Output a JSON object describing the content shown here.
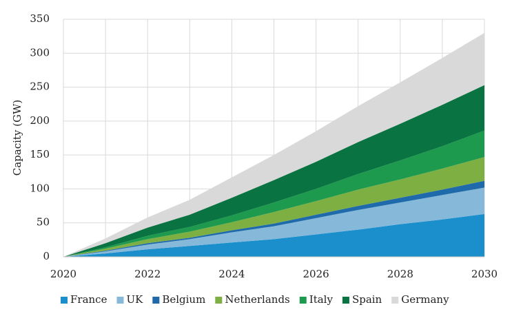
{
  "chart_data": {
    "type": "stacked_area",
    "y_label": "Capacity (GW)",
    "x": [
      2020,
      2021,
      2022,
      2023,
      2024,
      2025,
      2026,
      2027,
      2028,
      2029,
      2030
    ],
    "xlim": [
      2020,
      2030
    ],
    "xticks": [
      2020,
      2022,
      2024,
      2026,
      2028,
      2030
    ],
    "ylim": [
      0,
      350
    ],
    "yticks": [
      0,
      50,
      100,
      150,
      200,
      250,
      300,
      350
    ],
    "grid": true,
    "legend": "bottom",
    "series": [
      {
        "name": "France",
        "color": "#1a8fcc",
        "values": [
          0,
          5,
          11,
          16,
          21,
          26,
          33,
          40,
          48,
          55,
          63
        ]
      },
      {
        "name": "UK",
        "color": "#85b8d9",
        "values": [
          0,
          3,
          7,
          10,
          15,
          19,
          24,
          29,
          32,
          36,
          39
        ]
      },
      {
        "name": "Belgium",
        "color": "#1f6aaa",
        "values": [
          0,
          1,
          2,
          2,
          3,
          4,
          5,
          6,
          7,
          8,
          10
        ]
      },
      {
        "name": "Netherlands",
        "color": "#7daf43",
        "values": [
          0,
          3,
          6,
          9,
          12,
          17,
          20,
          24,
          27,
          31,
          35
        ]
      },
      {
        "name": "Italy",
        "color": "#1d9a4e",
        "values": [
          0,
          2,
          5,
          7,
          10,
          14,
          18,
          23,
          28,
          33,
          39
        ]
      },
      {
        "name": "Spain",
        "color": "#097341",
        "values": [
          0,
          6,
          12,
          18,
          26,
          33,
          40,
          47,
          54,
          61,
          67
        ]
      },
      {
        "name": "Germany",
        "color": "#d9d9d9",
        "values": [
          0,
          7,
          15,
          22,
          30,
          37,
          45,
          53,
          61,
          69,
          77
        ]
      }
    ]
  }
}
